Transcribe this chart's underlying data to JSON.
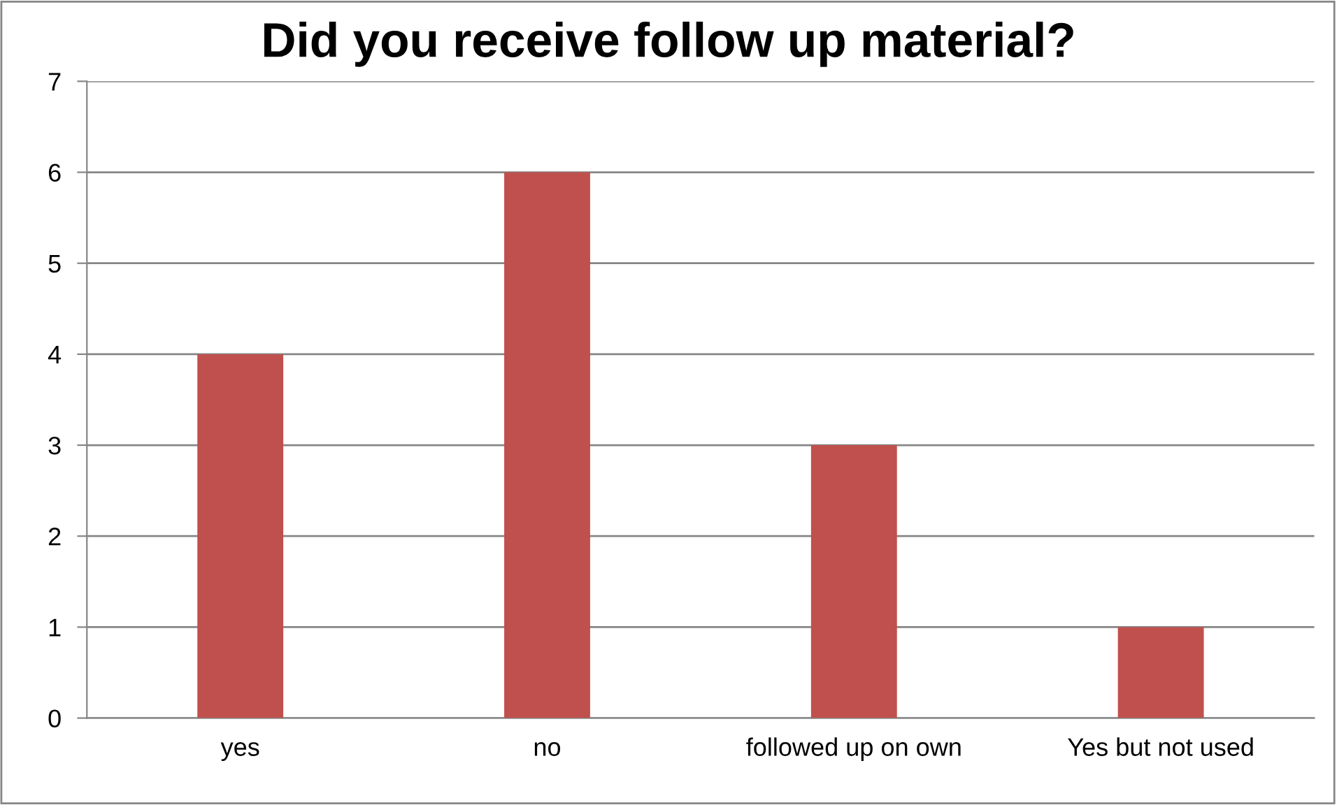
{
  "chart_data": {
    "type": "bar",
    "title": "Did you receive follow up material?",
    "categories": [
      "yes",
      "no",
      "followed up on own",
      "Yes but not used"
    ],
    "values": [
      4,
      6,
      3,
      1
    ],
    "color": "#c0504d",
    "ylim": [
      0,
      7
    ],
    "yticks": [
      0,
      1,
      2,
      3,
      4,
      5,
      6,
      7
    ],
    "grid": "y",
    "legend": false
  }
}
